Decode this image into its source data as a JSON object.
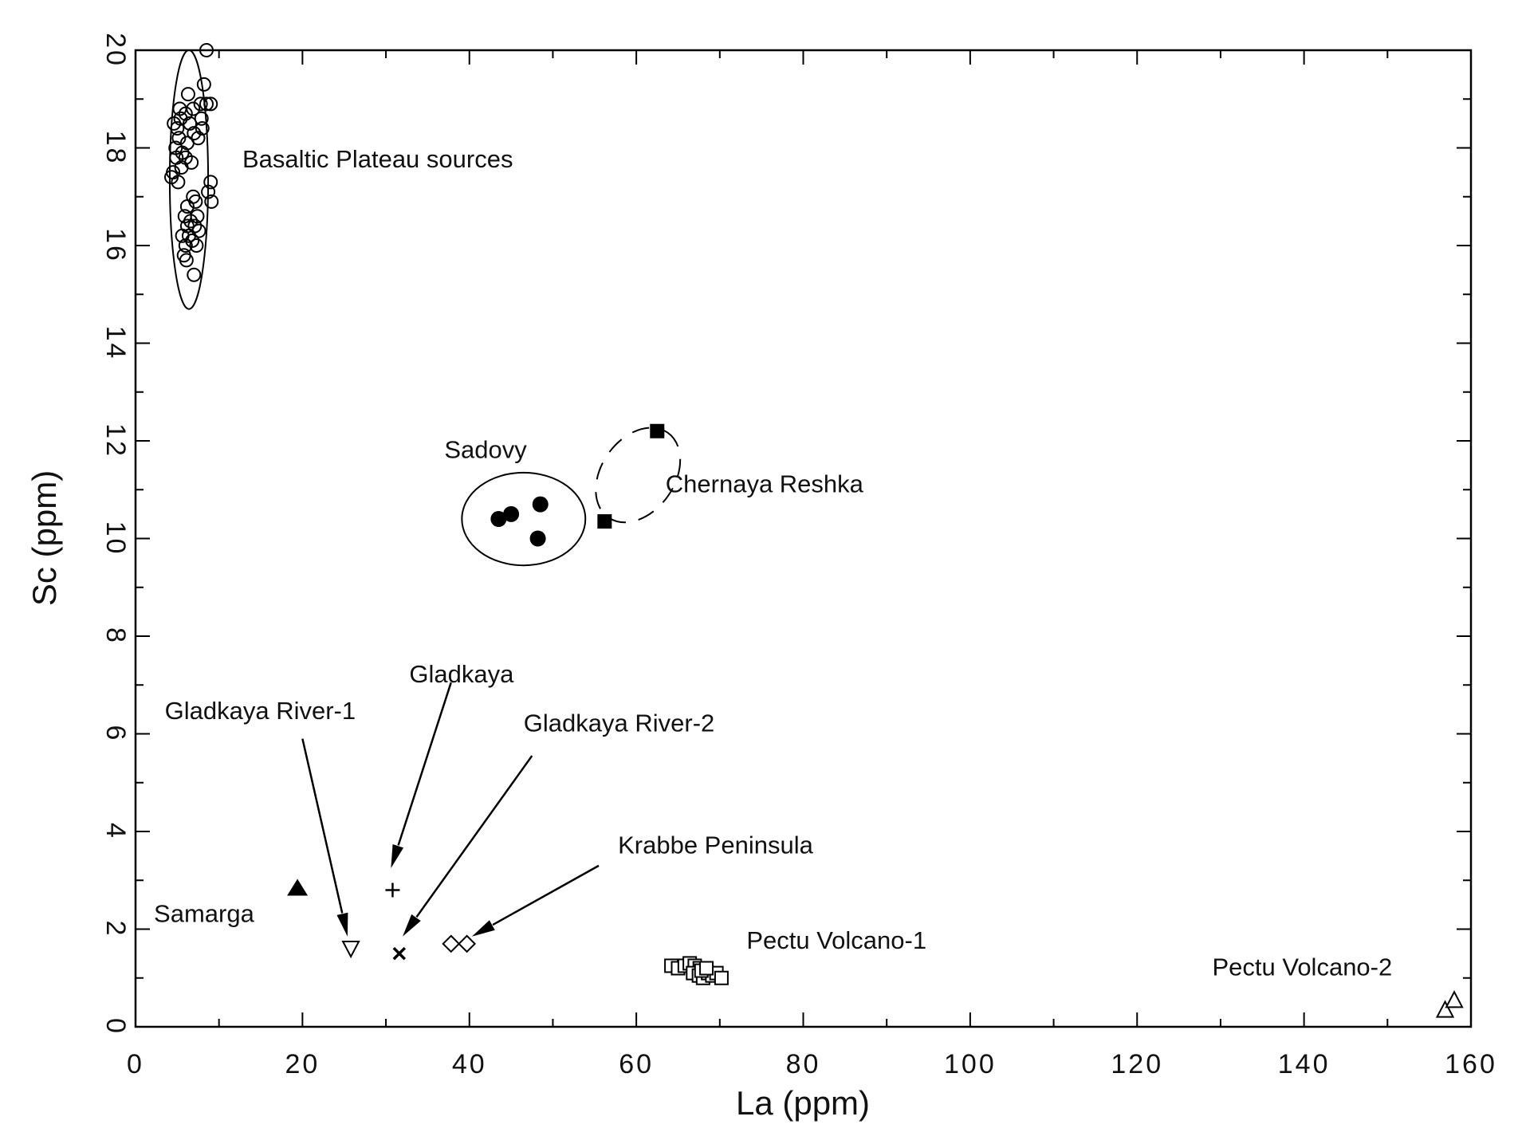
{
  "chart_data": {
    "type": "scatter",
    "title": "",
    "xlabel": "La (ppm)",
    "ylabel": "Sc (ppm)",
    "xlim": [
      0,
      160
    ],
    "ylim": [
      0,
      20
    ],
    "x_ticks": [
      0,
      20,
      40,
      60,
      80,
      100,
      120,
      140,
      160
    ],
    "y_ticks": [
      0,
      2,
      4,
      6,
      8,
      10,
      12,
      14,
      16,
      18,
      20
    ],
    "grid": false,
    "series": [
      {
        "name": "Basaltic Plateau sources",
        "marker": "open-circle",
        "points": [
          [
            4.6,
            18.5
          ],
          [
            5.0,
            18.4
          ],
          [
            5.4,
            18.6
          ],
          [
            6.0,
            18.7
          ],
          [
            6.5,
            18.5
          ],
          [
            5.2,
            18.2
          ],
          [
            4.8,
            18.0
          ],
          [
            5.6,
            17.9
          ],
          [
            6.2,
            18.1
          ],
          [
            7.0,
            18.3
          ],
          [
            7.5,
            18.2
          ],
          [
            8.0,
            18.4
          ],
          [
            7.8,
            18.9
          ],
          [
            8.5,
            18.9
          ],
          [
            9.0,
            18.9
          ],
          [
            8.2,
            19.3
          ],
          [
            6.3,
            19.1
          ],
          [
            8.5,
            20.0
          ],
          [
            4.5,
            17.5
          ],
          [
            5.1,
            17.3
          ],
          [
            5.5,
            17.6
          ],
          [
            6.0,
            17.8
          ],
          [
            6.7,
            17.7
          ],
          [
            4.3,
            17.4
          ],
          [
            9.0,
            17.3
          ],
          [
            8.7,
            17.1
          ],
          [
            9.1,
            16.9
          ],
          [
            6.9,
            17.0
          ],
          [
            7.2,
            16.9
          ],
          [
            5.9,
            16.6
          ],
          [
            6.2,
            16.4
          ],
          [
            6.6,
            16.5
          ],
          [
            7.1,
            16.4
          ],
          [
            7.6,
            16.3
          ],
          [
            7.4,
            16.6
          ],
          [
            5.6,
            16.2
          ],
          [
            6.0,
            16.0
          ],
          [
            6.4,
            16.2
          ],
          [
            6.8,
            16.1
          ],
          [
            7.3,
            16.0
          ],
          [
            5.8,
            15.8
          ],
          [
            6.1,
            15.7
          ],
          [
            7.0,
            15.4
          ],
          [
            6.2,
            16.8
          ],
          [
            5.3,
            18.8
          ],
          [
            4.9,
            17.8
          ],
          [
            7.9,
            18.6
          ],
          [
            6.9,
            18.8
          ]
        ],
        "ellipse": {
          "cx": 6.4,
          "cy": 17.35,
          "rx": 2.3,
          "ry": 2.65,
          "angle": 0,
          "dashed": false
        }
      },
      {
        "name": "Sadovy",
        "marker": "filled-circle",
        "points": [
          [
            43.5,
            10.4
          ],
          [
            45.0,
            10.5
          ],
          [
            48.5,
            10.7
          ],
          [
            48.2,
            10.0
          ]
        ],
        "ellipse": {
          "cx": 46.5,
          "cy": 10.4,
          "rx": 7.4,
          "ry": 0.95,
          "angle": 0,
          "dashed": false
        }
      },
      {
        "name": "Chernaya Reshka",
        "marker": "filled-square",
        "points": [
          [
            56.2,
            10.35
          ],
          [
            62.5,
            12.2
          ]
        ],
        "ellipse": {
          "cx": 60.2,
          "cy": 11.3,
          "rx": 6.2,
          "ry": 0.75,
          "angle": -55,
          "dashed": true
        }
      },
      {
        "name": "Gladkaya River-1",
        "marker": "open-down-triangle",
        "points": [
          [
            25.8,
            1.6
          ]
        ]
      },
      {
        "name": "Gladkaya",
        "marker": "plus",
        "points": [
          [
            30.8,
            2.8
          ]
        ]
      },
      {
        "name": "Gladkaya River-2",
        "marker": "x-cross",
        "points": [
          [
            31.6,
            1.5
          ]
        ]
      },
      {
        "name": "Samarga",
        "marker": "filled-up-triangle",
        "points": [
          [
            19.4,
            2.85
          ]
        ]
      },
      {
        "name": "Krabbe Peninsula",
        "marker": "open-diamond",
        "points": [
          [
            37.8,
            1.7
          ],
          [
            39.7,
            1.7
          ]
        ]
      },
      {
        "name": "Pectu Volcano-1",
        "marker": "open-square",
        "points": [
          [
            64.2,
            1.25
          ],
          [
            65.0,
            1.2
          ],
          [
            65.8,
            1.25
          ],
          [
            66.4,
            1.3
          ],
          [
            67.0,
            1.25
          ],
          [
            67.6,
            1.2
          ],
          [
            66.8,
            1.1
          ],
          [
            67.5,
            1.05
          ],
          [
            68.0,
            1.0
          ],
          [
            68.6,
            1.1
          ],
          [
            69.1,
            1.05
          ],
          [
            69.6,
            1.1
          ],
          [
            70.2,
            1.0
          ],
          [
            67.8,
            1.15
          ],
          [
            68.4,
            1.2
          ]
        ]
      },
      {
        "name": "Pectu Volcano-2",
        "marker": "open-up-triangle",
        "points": [
          [
            156.9,
            0.35
          ],
          [
            158.0,
            0.55
          ]
        ]
      }
    ],
    "annotations": [
      {
        "text": "Basaltic Plateau sources",
        "x": 12.8,
        "y": 17.6,
        "anchor": "start"
      },
      {
        "text": "Sadovy",
        "x": 37.0,
        "y": 11.65,
        "anchor": "start"
      },
      {
        "text": "Chernaya Reshka",
        "x": 63.5,
        "y": 10.95,
        "anchor": "start"
      },
      {
        "text": "Gladkaya",
        "x": 32.8,
        "y": 7.05,
        "anchor": "start"
      },
      {
        "text": "Gladkaya River-1",
        "x": 3.5,
        "y": 6.3,
        "anchor": "start"
      },
      {
        "text": "Gladkaya River-2",
        "x": 46.5,
        "y": 6.05,
        "anchor": "start"
      },
      {
        "text": "Krabbe Peninsula",
        "x": 57.8,
        "y": 3.55,
        "anchor": "start"
      },
      {
        "text": "Samarga",
        "x": 2.2,
        "y": 2.15,
        "anchor": "start"
      },
      {
        "text": "Pectu Volcano-1",
        "x": 73.2,
        "y": 1.6,
        "anchor": "start"
      },
      {
        "text": "Pectu Volcano-2",
        "x": 129.0,
        "y": 1.05,
        "anchor": "start"
      }
    ],
    "arrows": [
      {
        "from": [
          37.8,
          7.05
        ],
        "to": [
          30.6,
          3.25
        ]
      },
      {
        "from": [
          20.0,
          5.9
        ],
        "to": [
          25.4,
          1.85
        ]
      },
      {
        "from": [
          47.5,
          5.55
        ],
        "to": [
          32.0,
          1.85
        ]
      },
      {
        "from": [
          55.5,
          3.3
        ],
        "to": [
          40.3,
          1.85
        ]
      }
    ]
  }
}
